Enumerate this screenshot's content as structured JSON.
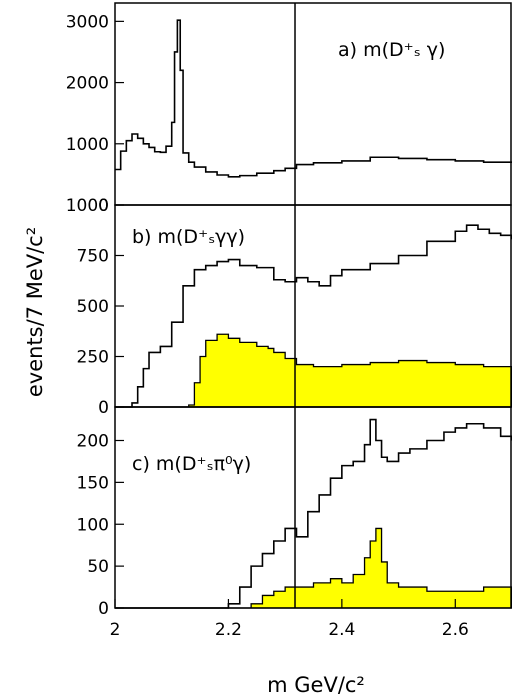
{
  "chart_data": [
    {
      "type": "line",
      "panel": "a",
      "label": "a) m(D⁺ₛ γ)",
      "ylim": [
        0,
        3300
      ],
      "ytick_labels": [
        "0",
        "1000",
        "2000",
        "3000"
      ],
      "yticks": [
        0,
        1000,
        2000,
        3000
      ],
      "series": [
        {
          "kind": "step",
          "x": [
            2.0,
            2.01,
            2.02,
            2.03,
            2.04,
            2.05,
            2.06,
            2.07,
            2.08,
            2.09,
            2.1,
            2.105,
            2.11,
            2.115,
            2.12,
            2.13,
            2.14,
            2.16,
            2.18,
            2.2,
            2.22,
            2.25,
            2.28,
            2.3,
            2.32,
            2.35,
            2.4,
            2.45,
            2.5,
            2.55,
            2.6,
            2.65,
            2.7
          ],
          "y": [
            580,
            880,
            1050,
            1160,
            1090,
            1000,
            940,
            870,
            860,
            960,
            1350,
            2500,
            3020,
            2200,
            850,
            700,
            620,
            540,
            490,
            460,
            480,
            520,
            560,
            600,
            660,
            690,
            720,
            780,
            760,
            740,
            720,
            700,
            690
          ]
        }
      ]
    },
    {
      "type": "area",
      "panel": "b",
      "label": "b) m(D⁺ₛγγ)",
      "ylim": [
        0,
        1000
      ],
      "ytick_labels": [
        "0",
        "250",
        "500",
        "750",
        "1000"
      ],
      "yticks": [
        0,
        250,
        500,
        750,
        1000
      ],
      "series": [
        {
          "kind": "step",
          "x": [
            2.0,
            2.02,
            2.03,
            2.04,
            2.05,
            2.06,
            2.08,
            2.1,
            2.12,
            2.14,
            2.16,
            2.18,
            2.2,
            2.22,
            2.25,
            2.28,
            2.3,
            2.32,
            2.34,
            2.36,
            2.38,
            2.4,
            2.45,
            2.5,
            2.55,
            2.6,
            2.62,
            2.64,
            2.66,
            2.68,
            2.7
          ],
          "y": [
            0,
            0,
            20,
            100,
            190,
            270,
            300,
            420,
            600,
            680,
            700,
            720,
            730,
            700,
            690,
            630,
            620,
            640,
            620,
            600,
            650,
            680,
            710,
            750,
            820,
            870,
            900,
            880,
            860,
            850,
            830
          ]
        },
        {
          "kind": "filled-step",
          "x": [
            2.0,
            2.1,
            2.13,
            2.14,
            2.15,
            2.16,
            2.18,
            2.2,
            2.22,
            2.25,
            2.27,
            2.28,
            2.3,
            2.32,
            2.35,
            2.4,
            2.45,
            2.5,
            2.55,
            2.6,
            2.65,
            2.7
          ],
          "y": [
            0,
            0,
            10,
            120,
            250,
            330,
            360,
            340,
            320,
            300,
            290,
            270,
            240,
            210,
            200,
            210,
            220,
            230,
            220,
            210,
            200,
            200
          ]
        }
      ]
    },
    {
      "type": "area",
      "panel": "c",
      "label": "c) m(D⁺ₛπ⁰γ)",
      "ylim": [
        0,
        240
      ],
      "ytick_labels": [
        "0",
        "50",
        "100",
        "150",
        "200"
      ],
      "yticks": [
        0,
        50,
        100,
        150,
        200
      ],
      "xlim": [
        2.0,
        2.7
      ],
      "xtick_labels": [
        "2",
        "2.2",
        "2.4",
        "2.6"
      ],
      "xticks": [
        2.0,
        2.2,
        2.4,
        2.6
      ],
      "series": [
        {
          "kind": "step",
          "x": [
            2.0,
            2.19,
            2.2,
            2.22,
            2.24,
            2.26,
            2.28,
            2.3,
            2.32,
            2.34,
            2.36,
            2.38,
            2.4,
            2.42,
            2.44,
            2.45,
            2.46,
            2.47,
            2.48,
            2.5,
            2.52,
            2.55,
            2.58,
            2.6,
            2.62,
            2.65,
            2.68,
            2.7
          ],
          "y": [
            0,
            0,
            5,
            25,
            50,
            65,
            80,
            95,
            85,
            115,
            135,
            155,
            170,
            175,
            195,
            225,
            200,
            180,
            175,
            185,
            190,
            200,
            210,
            215,
            220,
            215,
            205,
            200
          ]
        },
        {
          "kind": "filled-step",
          "x": [
            2.0,
            2.22,
            2.24,
            2.26,
            2.28,
            2.3,
            2.32,
            2.35,
            2.38,
            2.4,
            2.42,
            2.44,
            2.45,
            2.46,
            2.47,
            2.48,
            2.5,
            2.55,
            2.6,
            2.65,
            2.7
          ],
          "y": [
            0,
            0,
            5,
            15,
            20,
            25,
            25,
            30,
            35,
            30,
            40,
            60,
            80,
            95,
            55,
            30,
            25,
            20,
            20,
            25,
            20
          ]
        }
      ]
    }
  ],
  "shared": {
    "ylabel": "events/7 MeV/c²",
    "xlabel": "m GeV/c²",
    "vertical_line_x": 2.3174,
    "fill_color": "#ffff00",
    "line_color": "#000000"
  }
}
